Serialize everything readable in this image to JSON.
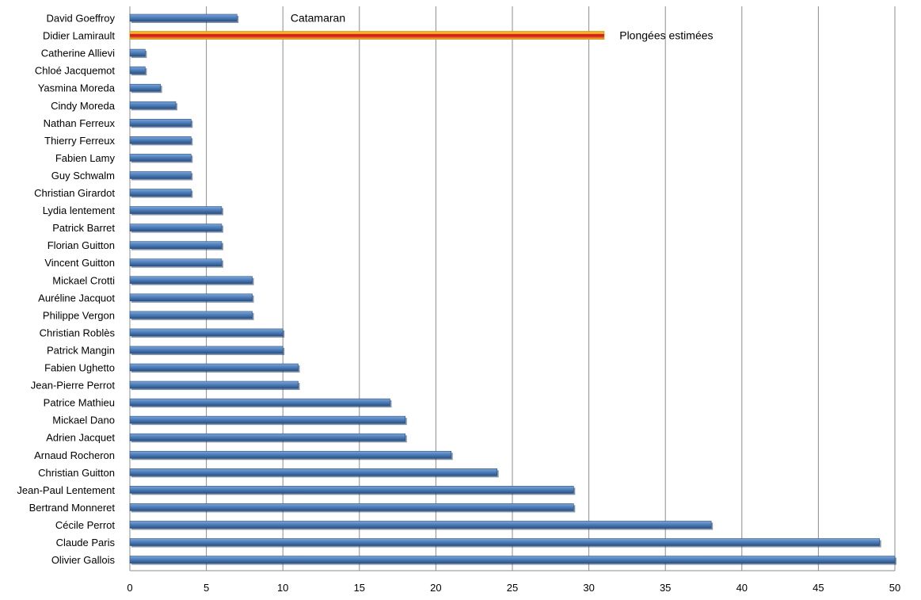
{
  "chart_data": {
    "type": "bar",
    "orientation": "horizontal",
    "categories": [
      "David Goeffroy",
      "Didier Lamirault",
      "Catherine Allievi",
      "Chloé Jacquemot",
      "Yasmina Moreda",
      "Cindy Moreda",
      "Nathan Ferreux",
      "Thierry Ferreux",
      "Fabien Lamy",
      "Guy Schwalm",
      "Christian Girardot",
      "Lydia lentement",
      "Patrick Barret",
      "Florian Guitton",
      "Vincent Guitton",
      "Mickael Crotti",
      "Auréline Jacquot",
      "Philippe Vergon",
      "Christian Roblès",
      "Patrick Mangin",
      "Fabien Ughetto",
      "Jean-Pierre Perrot",
      "Patrice Mathieu",
      "Mickael Dano",
      "Adrien Jacquet",
      "Arnaud Rocheron",
      "Christian Guitton",
      "Jean-Paul Lentement",
      "Bertrand Monneret",
      "Cécile Perrot",
      "Claude Paris",
      "Olivier Gallois"
    ],
    "values": [
      7,
      31,
      1,
      1,
      2,
      3,
      4,
      4,
      4,
      4,
      4,
      6,
      6,
      6,
      6,
      8,
      8,
      8,
      10,
      10,
      11,
      11,
      17,
      18,
      18,
      21,
      24,
      29,
      29,
      38,
      49,
      50
    ],
    "highlight_index": 1,
    "xlim": [
      0,
      50
    ],
    "xticks": [
      "0",
      "5",
      "10",
      "15",
      "20",
      "25",
      "30",
      "35",
      "40",
      "45",
      "50"
    ],
    "grid": true,
    "annotations": [
      {
        "text": "Catamaran",
        "category_index": 0,
        "x": 10.5
      },
      {
        "text": "Plongées estimées",
        "category_index": 1,
        "x": 32.0
      }
    ],
    "colors": {
      "bar_main": "#4f81bd",
      "bar_dark": "#2c5183",
      "bar_light": "#7ea6d6",
      "highlight_outer": "#f2c12e",
      "highlight_inner": "#d71f1f",
      "grid": "#8c8c8c"
    }
  }
}
